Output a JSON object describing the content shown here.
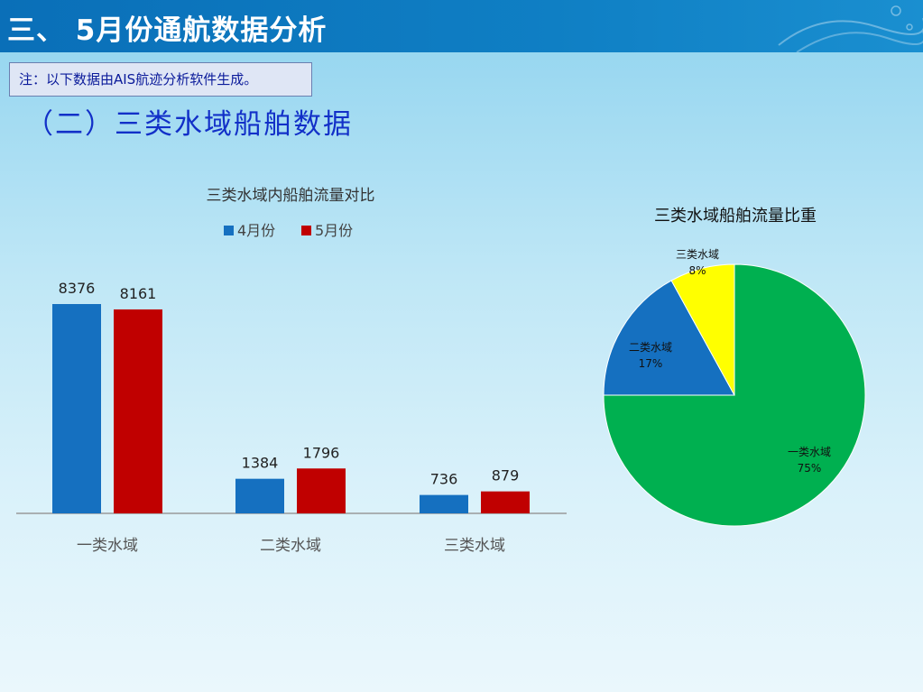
{
  "header": {
    "title": "三、 5月份通航数据分析"
  },
  "note": {
    "text": "注：以下数据由AIS航迹分析软件生成。"
  },
  "section": {
    "title": "（二）三类水域船舶数据"
  },
  "chart_data": [
    {
      "type": "bar",
      "title": "三类水域内船舶流量对比",
      "categories": [
        "一类水域",
        "二类水域",
        "三类水域"
      ],
      "series": [
        {
          "name": "4月份",
          "values": [
            8376,
            1384,
            736
          ],
          "color": "#1570c0"
        },
        {
          "name": "5月份",
          "values": [
            8161,
            1796,
            879
          ],
          "color": "#c00000"
        }
      ],
      "ylim": [
        0,
        9500
      ],
      "grid": false,
      "legend": "top"
    },
    {
      "type": "pie",
      "title": "三类水域船舶流量比重",
      "slices": [
        {
          "label": "一类水域",
          "value": 75,
          "pct": "75%",
          "color": "#00b050"
        },
        {
          "label": "二类水域",
          "value": 17,
          "pct": "17%",
          "color": "#1570c0"
        },
        {
          "label": "三类水域",
          "value": 8,
          "pct": "8%",
          "color": "#ffff00"
        }
      ]
    }
  ]
}
